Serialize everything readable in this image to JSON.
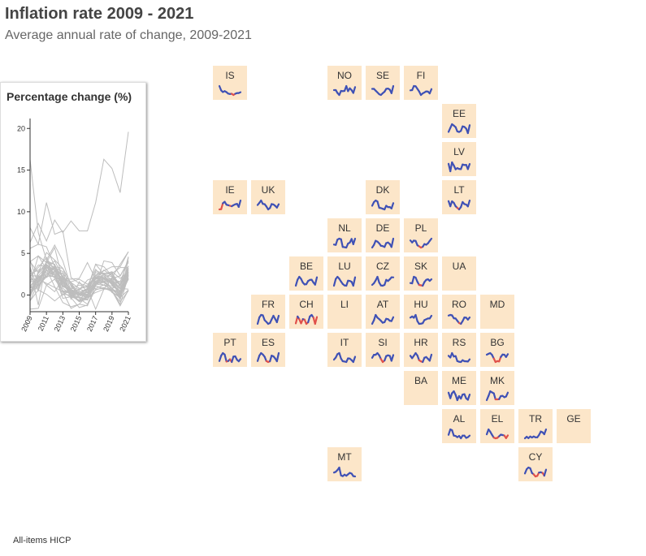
{
  "title": "Inflation rate 2009 - 2021",
  "subtitle": "Average annual rate of change, 2009-2021",
  "footnote": "All-items HICP",
  "colors": {
    "tile_bg": "#fce6c9",
    "line_main": "#3f51b5",
    "line_low": "#e0504a",
    "overview_line": "#bdbdbd"
  },
  "chart_data": {
    "type": "line",
    "title": "Percentage change (%)",
    "x": [
      2009,
      2010,
      2011,
      2012,
      2013,
      2014,
      2015,
      2016,
      2017,
      2018,
      2019,
      2020,
      2021
    ],
    "x_tick_labels": [
      "2009",
      "2011",
      "2013",
      "2015",
      "2017",
      "2019",
      "2021"
    ],
    "ylim": [
      -2,
      21
    ],
    "y_ticks": [
      0,
      5,
      10,
      15,
      20
    ],
    "grid": false,
    "series": [
      {
        "values": [
          16.3,
          7.5,
          4.2,
          6.0,
          4.1,
          1.0,
          0.3,
          0.8,
          -1.7,
          0.7,
          2.0,
          2.3,
          3.9
        ],
        "col": 1,
        "row": 0,
        "label": "IS"
      },
      {
        "values": [
          2.3,
          2.3,
          1.2,
          0.4,
          2.0,
          1.9,
          2.0,
          3.9,
          1.9,
          3.0,
          2.3,
          1.2,
          3.5
        ],
        "col": 4,
        "row": 0,
        "label": "NO"
      },
      {
        "values": [
          1.9,
          1.9,
          1.4,
          0.9,
          0.4,
          0.2,
          0.7,
          1.1,
          1.9,
          2.0,
          1.7,
          0.7,
          2.7
        ],
        "col": 5,
        "row": 0,
        "label": "SE"
      },
      {
        "values": [
          1.6,
          1.7,
          3.3,
          3.2,
          2.2,
          1.2,
          -0.2,
          0.4,
          0.8,
          1.2,
          1.1,
          0.4,
          2.1
        ],
        "col": 6,
        "row": 0,
        "label": "FI"
      },
      {
        "values": [
          0.2,
          2.7,
          5.1,
          4.2,
          3.2,
          0.5,
          0.1,
          0.8,
          3.7,
          3.4,
          2.3,
          -0.6,
          4.5
        ],
        "col": 7,
        "row": 1,
        "label": "EE"
      },
      {
        "values": [
          3.3,
          -1.2,
          4.2,
          2.3,
          0.0,
          0.7,
          0.2,
          0.1,
          2.9,
          2.6,
          2.7,
          0.1,
          3.2
        ],
        "col": 7,
        "row": 2,
        "label": "LV"
      },
      {
        "values": [
          -1.7,
          -1.6,
          1.2,
          1.9,
          0.5,
          0.3,
          0.0,
          -0.2,
          0.3,
          0.7,
          0.9,
          -0.5,
          2.5
        ],
        "col": 1,
        "row": 3,
        "label": "IE"
      },
      {
        "values": [
          2.2,
          3.3,
          4.5,
          2.8,
          2.6,
          1.5,
          0.0,
          0.7,
          2.7,
          2.5,
          1.8,
          0.9,
          2.6
        ],
        "col": 2,
        "row": 3,
        "label": "UK"
      },
      {
        "values": [
          1.1,
          2.2,
          2.7,
          2.4,
          0.5,
          0.4,
          0.2,
          0.0,
          1.1,
          0.7,
          0.7,
          0.3,
          1.9
        ],
        "col": 5,
        "row": 3,
        "label": "DK"
      },
      {
        "values": [
          4.2,
          1.2,
          4.1,
          3.2,
          1.2,
          0.2,
          -0.7,
          0.7,
          3.7,
          2.5,
          2.2,
          1.1,
          4.6
        ],
        "col": 7,
        "row": 3,
        "label": "LT"
      },
      {
        "values": [
          1.0,
          0.9,
          2.5,
          2.8,
          2.6,
          0.3,
          0.2,
          0.1,
          1.3,
          1.6,
          2.7,
          1.1,
          2.8
        ],
        "col": 4,
        "row": 4,
        "label": "NL"
      },
      {
        "values": [
          0.2,
          1.1,
          2.5,
          2.2,
          1.6,
          0.8,
          0.7,
          0.4,
          1.7,
          1.9,
          1.4,
          0.4,
          3.2
        ],
        "col": 5,
        "row": 4,
        "label": "DE"
      },
      {
        "values": [
          4.0,
          2.7,
          3.9,
          3.7,
          0.8,
          0.1,
          -0.7,
          -0.2,
          1.6,
          1.2,
          2.1,
          3.7,
          5.2
        ],
        "col": 6,
        "row": 4,
        "label": "PL"
      },
      {
        "values": [
          0.0,
          2.3,
          3.4,
          2.6,
          1.2,
          0.5,
          0.6,
          1.8,
          2.2,
          2.3,
          1.2,
          0.4,
          3.2
        ],
        "col": 3,
        "row": 5,
        "label": "BE"
      },
      {
        "values": [
          0.0,
          2.8,
          3.7,
          2.9,
          1.7,
          0.7,
          0.1,
          0.0,
          2.1,
          2.0,
          1.6,
          0.0,
          3.5
        ],
        "col": 4,
        "row": 5,
        "label": "LU"
      },
      {
        "values": [
          0.6,
          1.2,
          2.2,
          3.5,
          1.4,
          0.4,
          0.3,
          0.6,
          2.4,
          2.0,
          2.6,
          3.3,
          3.3
        ],
        "col": 5,
        "row": 5,
        "label": "CZ"
      },
      {
        "values": [
          0.9,
          0.7,
          4.1,
          3.7,
          1.5,
          -0.1,
          -0.3,
          -0.5,
          1.4,
          2.5,
          2.8,
          2.0,
          2.8
        ],
        "col": 6,
        "row": 5,
        "label": "SK"
      },
      {
        "values": [
          0.1,
          1.7,
          2.3,
          2.2,
          1.0,
          0.6,
          0.1,
          0.3,
          1.2,
          2.1,
          1.3,
          0.5,
          2.1
        ],
        "col": 2,
        "row": 6,
        "label": "FR"
      },
      {
        "values": [
          -0.7,
          0.6,
          0.1,
          -0.7,
          0.1,
          0.0,
          -0.8,
          -0.5,
          0.6,
          0.9,
          0.4,
          -0.8,
          0.5
        ],
        "col": 3,
        "row": 6,
        "label": "CH"
      },
      {
        "values": [
          0.4,
          1.7,
          3.6,
          2.6,
          2.1,
          1.5,
          0.8,
          1.0,
          2.2,
          2.1,
          1.5,
          1.4,
          2.8
        ],
        "col": 5,
        "row": 6,
        "label": "AT"
      },
      {
        "values": [
          4.0,
          4.7,
          3.9,
          5.7,
          1.7,
          0.0,
          0.1,
          0.4,
          2.4,
          2.9,
          3.4,
          3.4,
          5.2
        ],
        "col": 6,
        "row": 6,
        "label": "HU"
      },
      {
        "values": [
          5.6,
          6.1,
          5.8,
          3.4,
          3.2,
          1.4,
          -0.4,
          -1.1,
          1.1,
          4.1,
          3.9,
          2.3,
          4.1
        ],
        "col": 7,
        "row": 6,
        "label": "RO"
      },
      {
        "values": [
          -0.2,
          2.0,
          3.0,
          2.4,
          -0.4,
          -0.2,
          0.5,
          -0.6,
          1.6,
          1.7,
          0.3,
          -0.3,
          0.6
        ],
        "col": 1,
        "row": 7,
        "label": "PT"
      },
      {
        "values": [
          -0.2,
          2.0,
          3.0,
          2.4,
          1.5,
          -0.2,
          -0.6,
          -0.3,
          2.0,
          1.7,
          0.8,
          -0.3,
          3.0
        ],
        "col": 2,
        "row": 7,
        "label": "ES"
      },
      {
        "values": [
          0.8,
          1.6,
          2.9,
          3.3,
          1.2,
          0.2,
          0.1,
          -0.1,
          1.3,
          1.2,
          0.6,
          -0.1,
          1.9
        ],
        "col": 4,
        "row": 7,
        "label": "IT"
      },
      {
        "values": [
          0.9,
          2.1,
          2.1,
          2.8,
          1.9,
          0.4,
          -0.8,
          -0.2,
          1.6,
          1.9,
          1.7,
          -0.3,
          2.0
        ],
        "col": 5,
        "row": 7,
        "label": "SI"
      },
      {
        "values": [
          2.2,
          1.1,
          2.2,
          3.4,
          2.3,
          0.2,
          -0.3,
          -0.6,
          1.3,
          1.6,
          0.8,
          0.0,
          2.7
        ],
        "col": 6,
        "row": 7,
        "label": "HR"
      },
      {
        "values": [
          8.1,
          6.1,
          11.1,
          7.3,
          7.7,
          2.1,
          1.4,
          1.1,
          3.1,
          2.0,
          1.9,
          1.6,
          4.1
        ],
        "col": 7,
        "row": 7,
        "label": "RS"
      },
      {
        "values": [
          2.5,
          3.0,
          3.4,
          2.4,
          0.4,
          -1.6,
          -1.1,
          -1.3,
          1.2,
          2.6,
          2.5,
          1.2,
          2.8
        ],
        "col": 8,
        "row": 7,
        "label": "BG"
      },
      {
        "values": [
          3.4,
          0.5,
          3.1,
          4.1,
          2.2,
          -0.5,
          1.6,
          0.3,
          2.4,
          2.6,
          0.4,
          -0.3,
          2.4
        ],
        "col": 7,
        "row": 8,
        "label": "ME"
      },
      {
        "values": [
          -0.7,
          1.5,
          3.9,
          3.3,
          2.8,
          -0.3,
          -0.3,
          -0.2,
          1.4,
          1.5,
          0.8,
          1.2,
          3.2
        ],
        "col": 8,
        "row": 8,
        "label": "MK"
      },
      {
        "values": [
          2.2,
          3.6,
          3.4,
          2.0,
          1.9,
          1.6,
          1.9,
          1.3,
          2.0,
          2.0,
          1.4,
          1.6,
          2.0
        ],
        "col": 7,
        "row": 9,
        "label": "AL"
      },
      {
        "values": [
          1.3,
          4.7,
          3.1,
          1.0,
          -0.9,
          -1.4,
          -1.1,
          0.0,
          1.1,
          0.8,
          0.5,
          -1.3,
          0.6
        ],
        "col": 8,
        "row": 9,
        "label": "EL"
      },
      {
        "values": [
          6.3,
          8.6,
          6.5,
          9.0,
          7.5,
          8.9,
          7.7,
          7.7,
          11.1,
          16.3,
          15.2,
          12.3,
          19.6
        ],
        "col": 9,
        "row": 9,
        "label": "TR"
      },
      {
        "values": [
          1.8,
          2.0,
          2.5,
          3.2,
          1.0,
          0.8,
          1.2,
          0.9,
          1.3,
          1.7,
          1.5,
          0.8,
          0.7
        ],
        "col": 4,
        "row": 10,
        "label": "MT"
      },
      {
        "values": [
          0.2,
          2.6,
          3.5,
          3.1,
          0.4,
          -0.3,
          -1.5,
          -1.2,
          0.7,
          0.8,
          0.5,
          -1.1,
          2.3
        ],
        "col": 9,
        "row": 10,
        "label": "CY"
      }
    ],
    "empty_tiles": [
      {
        "label": "UA",
        "col": 7,
        "row": 5
      },
      {
        "label": "MD",
        "col": 8,
        "row": 6
      },
      {
        "label": "LI",
        "col": 4,
        "row": 6
      },
      {
        "label": "BA",
        "col": 6,
        "row": 8
      },
      {
        "label": "GE",
        "col": 10,
        "row": 9
      }
    ]
  }
}
